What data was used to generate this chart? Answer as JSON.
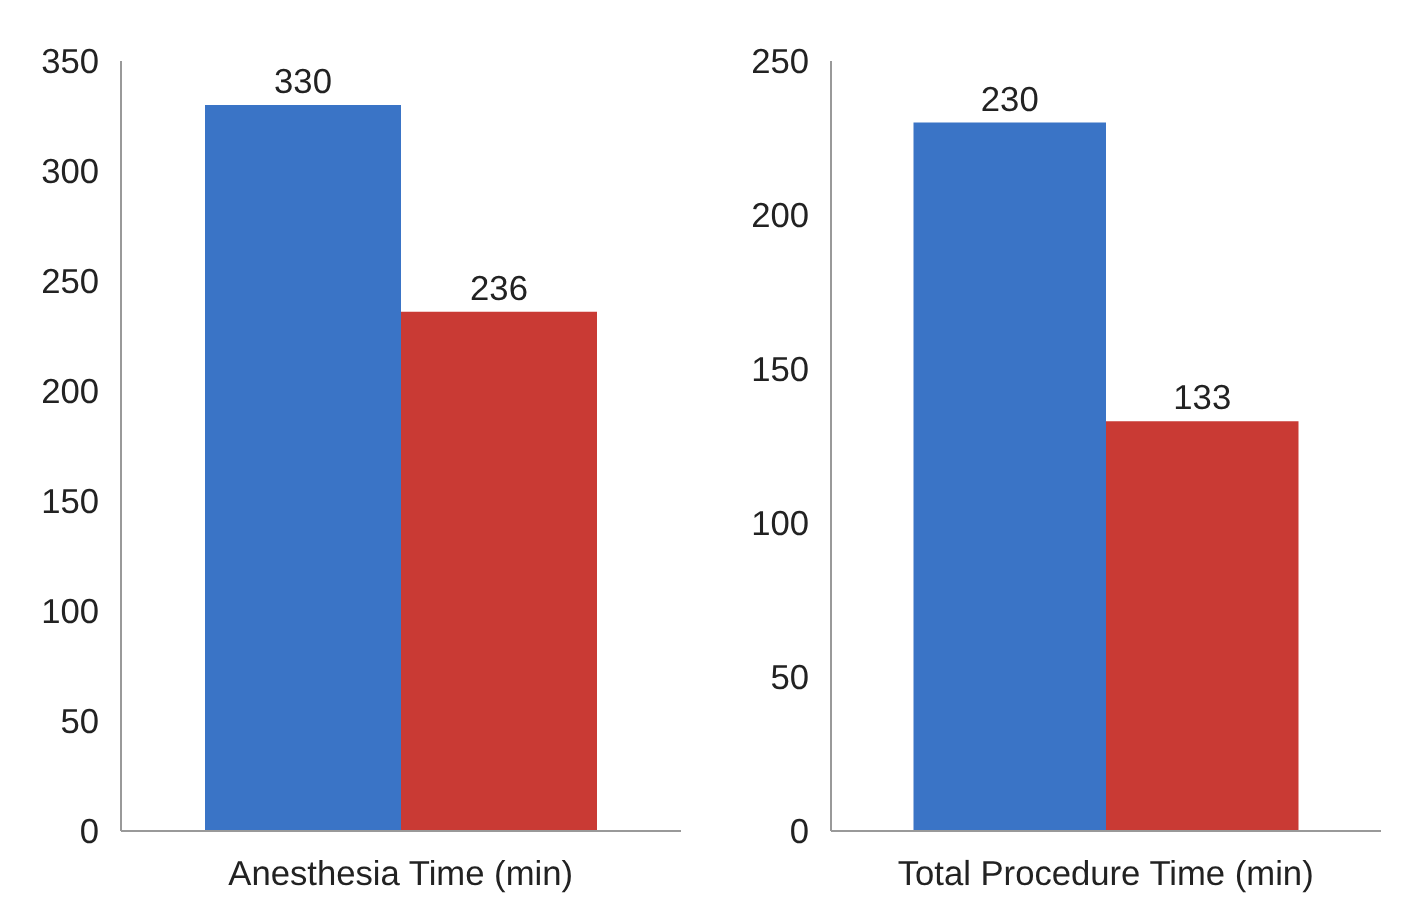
{
  "chart_data": [
    {
      "type": "bar",
      "categories": [
        "Anesthesia Time (min)"
      ],
      "series": [
        {
          "color": "#3a74c6",
          "values": [
            330
          ]
        },
        {
          "color": "#c93a34",
          "values": [
            236
          ]
        }
      ],
      "ylim": [
        0,
        350
      ],
      "yticks": [
        0,
        50,
        100,
        150,
        200,
        250,
        300,
        350
      ],
      "grid": false,
      "data_labels": true
    },
    {
      "type": "bar",
      "categories": [
        "Total Procedure Time (min)"
      ],
      "series": [
        {
          "color": "#3a74c6",
          "values": [
            230
          ]
        },
        {
          "color": "#c93a34",
          "values": [
            133
          ]
        }
      ],
      "ylim": [
        0,
        250
      ],
      "yticks": [
        0,
        50,
        100,
        150,
        200,
        250
      ],
      "grid": false,
      "data_labels": true
    }
  ]
}
